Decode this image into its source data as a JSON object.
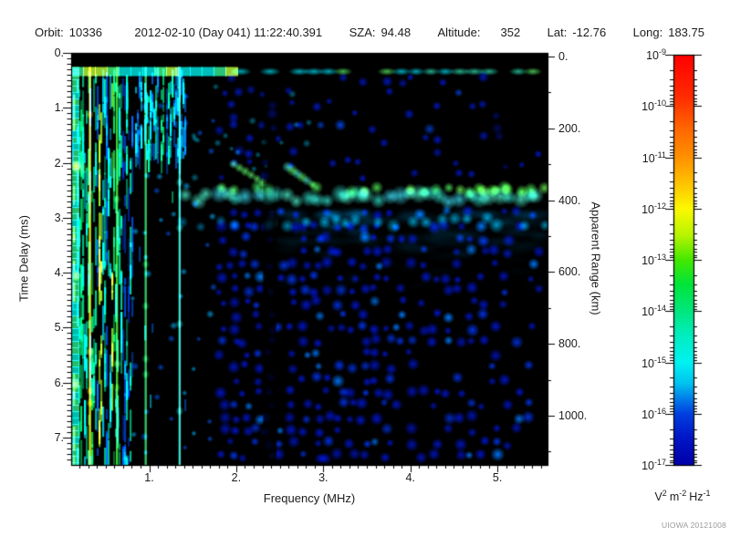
{
  "header": {
    "fields": [
      {
        "label": "Orbit:",
        "value": "10336"
      },
      {
        "label": "",
        "value": "2012-02-10 (Day 041) 11:22:40.391"
      },
      {
        "label": "SZA:",
        "value": "94.48"
      },
      {
        "label": "Altitude:",
        "value": "352",
        "widegap": true
      },
      {
        "label": "Lat:",
        "value": "-12.76"
      },
      {
        "label": "Long:",
        "value": "183.75"
      }
    ]
  },
  "credit": "UIOWA 20121008",
  "chart_data": {
    "type": "heatmap",
    "title": "",
    "xlabel": "Frequency (MHz)",
    "ylabel": "Time Delay (ms)",
    "y2label": "Apparent Range (km)",
    "x_range_mhz": [
      0.1,
      5.58
    ],
    "y_range_ms": [
      0,
      7.5
    ],
    "y2_range_km": [
      -10,
      1137
    ],
    "x_ticks": {
      "values": [
        1,
        2,
        3,
        4,
        5
      ],
      "labels": [
        "1.",
        "2.",
        "3.",
        "4.",
        "5."
      ],
      "minor_step_mhz": 0.1
    },
    "y_ticks": {
      "values": [
        0,
        1,
        2,
        3,
        4,
        5,
        6,
        7
      ],
      "labels": [
        "0.",
        "1.",
        "2.",
        "3.",
        "4.",
        "5.",
        "6.",
        "7."
      ],
      "minor_step_ms": 0.1
    },
    "y2_ticks": {
      "values": [
        0,
        200,
        400,
        600,
        800,
        1000
      ],
      "labels": [
        "0.",
        "200.",
        "400.",
        "600.",
        "800.",
        "1000."
      ],
      "minor_step_km": 100
    },
    "colorbar": {
      "scale": "log",
      "exponents": [
        -9,
        -10,
        -11,
        -12,
        -13,
        -14,
        -15,
        -16,
        -17
      ],
      "unit_parts": [
        [
          "V",
          "2"
        ],
        [
          "m",
          "-2"
        ],
        [
          "Hz",
          "-1"
        ]
      ],
      "gradient": [
        {
          "at": 0.0,
          "color": "#ff0000"
        },
        {
          "at": 0.1,
          "color": "#ff2a00"
        },
        {
          "at": 0.185,
          "color": "#ff6a00"
        },
        {
          "at": 0.25,
          "color": "#ff9100"
        },
        {
          "at": 0.315,
          "color": "#ffc400"
        },
        {
          "at": 0.375,
          "color": "#fdf900"
        },
        {
          "at": 0.44,
          "color": "#b8f400"
        },
        {
          "at": 0.5,
          "color": "#45e800"
        },
        {
          "at": 0.56,
          "color": "#00e53a"
        },
        {
          "at": 0.625,
          "color": "#00e77e"
        },
        {
          "at": 0.69,
          "color": "#00eec4"
        },
        {
          "at": 0.75,
          "color": "#00f2f2"
        },
        {
          "at": 0.8,
          "color": "#00c4f0"
        },
        {
          "at": 0.845,
          "color": "#0072e8"
        },
        {
          "at": 0.875,
          "color": "#0040e0"
        },
        {
          "at": 0.93,
          "color": "#0018c8"
        },
        {
          "at": 1.0,
          "color": "#0000a8"
        }
      ]
    },
    "features": {
      "transmit_band": {
        "time_ms": [
          0.25,
          0.43
        ],
        "freq_mhz": [
          0.1,
          5.58
        ],
        "level": "strong cyan-green"
      },
      "echo_band": {
        "time_ms": [
          2.4,
          2.9
        ],
        "freq_mhz": [
          1.5,
          5.58
        ],
        "level": "strong cyan with green core"
      },
      "echo_cusp_freq_mhz": [
        2.0,
        2.85
      ],
      "noise_stripes_freq_mhz": [
        0.1,
        1.45
      ],
      "narrowband_lines": [
        {
          "freq_mhz": 0.32,
          "color": "#e0e400"
        },
        {
          "freq_mhz": 0.63,
          "color": "#44d836"
        },
        {
          "freq_mhz": 0.96,
          "color": "#2fcf68"
        },
        {
          "freq_mhz": 1.35,
          "color": "#3fe8d8"
        }
      ],
      "absorption_gap_mhz": [
        2.31,
        2.46
      ],
      "upper_gap_mhz": [
        4.9,
        5.15
      ],
      "diffuse_spread": {
        "time_ms": [
          2.9,
          4.6
        ],
        "freq_mhz": [
          2.45,
          5.58
        ],
        "level": "faint blue haze"
      },
      "scattered_noise": {
        "freq_mhz": [
          1.0,
          5.58
        ],
        "time_ms": [
          0.5,
          7.5
        ],
        "level": "weak dark-blue blobs, density decreasing with frequency"
      }
    }
  }
}
